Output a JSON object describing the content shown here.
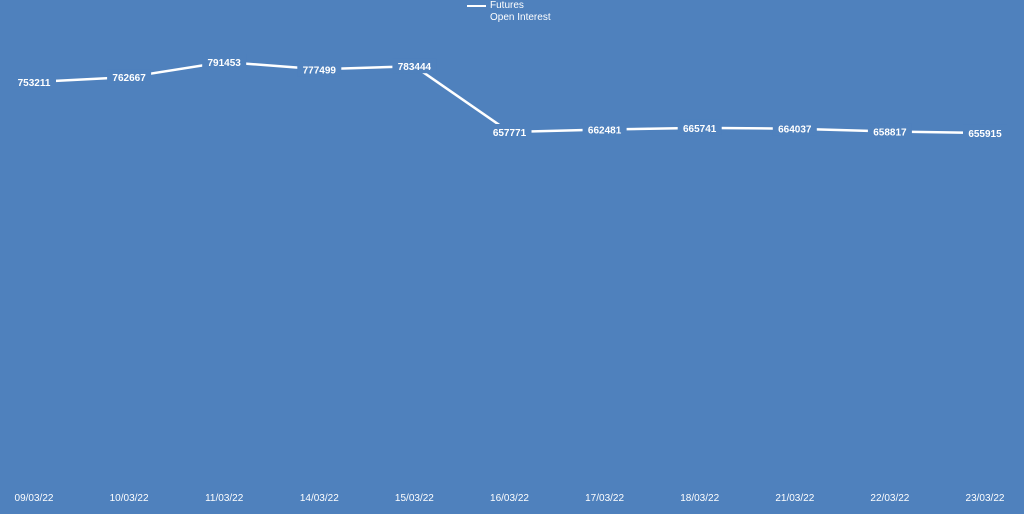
{
  "chart_data": {
    "type": "line",
    "title": "",
    "xlabel": "",
    "ylabel": "",
    "categories": [
      "09/03/22",
      "10/03/22",
      "11/03/22",
      "14/03/22",
      "15/03/22",
      "16/03/22",
      "17/03/22",
      "18/03/22",
      "21/03/22",
      "22/03/22",
      "23/03/22"
    ],
    "series": [
      {
        "name": "Futures Open Interest",
        "values": [
          753211,
          762667,
          791453,
          777499,
          783444,
          657771,
          662481,
          665741,
          664037,
          658817,
          655915
        ]
      }
    ],
    "legend": {
      "position": "top-center",
      "label_line1": "Futures",
      "label_line2": "Open Interest"
    },
    "grid": false,
    "drop_lines": true,
    "data_labels": true,
    "colors": {
      "background": "#4f81bd",
      "line": "#ffffff",
      "text": "#ffffff"
    }
  }
}
